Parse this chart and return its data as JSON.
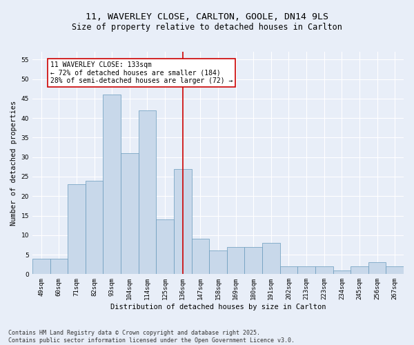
{
  "title": "11, WAVERLEY CLOSE, CARLTON, GOOLE, DN14 9LS",
  "subtitle": "Size of property relative to detached houses in Carlton",
  "xlabel": "Distribution of detached houses by size in Carlton",
  "ylabel": "Number of detached properties",
  "categories": [
    "49sqm",
    "60sqm",
    "71sqm",
    "82sqm",
    "93sqm",
    "104sqm",
    "114sqm",
    "125sqm",
    "136sqm",
    "147sqm",
    "158sqm",
    "169sqm",
    "180sqm",
    "191sqm",
    "202sqm",
    "213sqm",
    "223sqm",
    "234sqm",
    "245sqm",
    "256sqm",
    "267sqm"
  ],
  "values": [
    4,
    4,
    23,
    24,
    46,
    31,
    42,
    14,
    27,
    9,
    6,
    7,
    7,
    8,
    2,
    2,
    2,
    1,
    2,
    3,
    2
  ],
  "bar_color": "#c8d8ea",
  "bar_edge_color": "#6699bb",
  "vline_x": 8,
  "vline_color": "#cc0000",
  "annotation_text": "11 WAVERLEY CLOSE: 133sqm\n← 72% of detached houses are smaller (184)\n28% of semi-detached houses are larger (72) →",
  "annotation_box_color": "#cc0000",
  "ylim": [
    0,
    57
  ],
  "yticks": [
    0,
    5,
    10,
    15,
    20,
    25,
    30,
    35,
    40,
    45,
    50,
    55
  ],
  "footnote": "Contains HM Land Registry data © Crown copyright and database right 2025.\nContains public sector information licensed under the Open Government Licence v3.0.",
  "bg_color": "#e8eef8",
  "plot_bg_color": "#e8eef8",
  "grid_color": "#ffffff",
  "title_fontsize": 9.5,
  "subtitle_fontsize": 8.5,
  "axis_label_fontsize": 7.5,
  "tick_fontsize": 6.5,
  "footnote_fontsize": 6.0,
  "annotation_fontsize": 7.0
}
